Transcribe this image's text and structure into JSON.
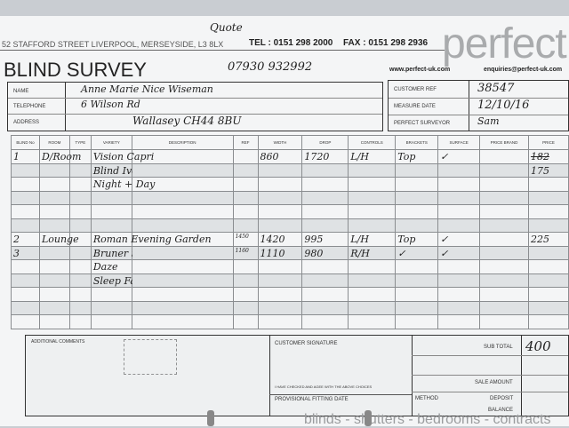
{
  "header": {
    "address": "52 STAFFORD STREET LIVERPOOL, MERSEYSIDE, L3 8LX",
    "tel": "TEL : 0151 298 2000",
    "fax": "FAX : 0151 298 2936",
    "logo": "perfect",
    "title": "BLIND SURVEY",
    "website": "www.perfect-uk.com",
    "email": "enquiries@perfect-uk.com",
    "handwritten_note": "Quote",
    "handwritten_phone": "07930 932992"
  },
  "customer": {
    "name_label": "NAME",
    "name": "Anne Marie Nice Wiseman",
    "telephone_label": "TELEPHONE",
    "telephone": "6 Wilson Rd",
    "address_label": "ADDRESS",
    "address": "Wallasey CH44 8BU"
  },
  "ref": {
    "customer_ref_label": "CUSTOMER REF",
    "customer_ref": "38547",
    "measure_date_label": "MEASURE DATE",
    "measure_date": "12/10/16",
    "surveyor_label": "PERFECT SURVEYOR",
    "surveyor": "Sam"
  },
  "table": {
    "headers": [
      "BLIND No",
      "ROOM",
      "TYPE",
      "VARIETY",
      "DESCRIPTION",
      "REF",
      "WIDTH",
      "DROP",
      "CONTROLS",
      "BRACKETS",
      "SURFACE",
      "PRICE BRAND",
      "PRICE"
    ],
    "rows": [
      [
        "1",
        "D/Room",
        "",
        "Vision Capri",
        "",
        "",
        "860",
        "1720",
        "L/H",
        "Top",
        "✓",
        "",
        "182"
      ],
      [
        "",
        "",
        "",
        "Blind Ivory",
        "",
        "",
        "",
        "",
        "",
        "",
        "",
        "",
        "175"
      ],
      [
        "",
        "",
        "",
        "Night + Day",
        "",
        "",
        "",
        "",
        "",
        "",
        "",
        "",
        ""
      ],
      [
        "",
        "",
        "",
        "",
        "",
        "",
        "",
        "",
        "",
        "",
        "",
        "",
        ""
      ],
      [
        "",
        "",
        "",
        "",
        "",
        "",
        "",
        "",
        "",
        "",
        "",
        "",
        ""
      ],
      [
        "",
        "",
        "",
        "",
        "",
        "",
        "",
        "",
        "",
        "",
        "",
        "",
        ""
      ],
      [
        "2",
        "Lounge",
        "",
        "Roman Evening Garden",
        "",
        "1450",
        "1420",
        "995",
        "L/H",
        "Top",
        "✓",
        "",
        "225"
      ],
      [
        "3",
        "",
        "",
        "Bruner Summer",
        "",
        "1160",
        "1110",
        "980",
        "R/H",
        "✓",
        "✓",
        "",
        ""
      ],
      [
        "",
        "",
        "",
        "Daze",
        "",
        "",
        "",
        "",
        "",
        "",
        "",
        "",
        ""
      ],
      [
        "",
        "",
        "",
        "Sleep Fashion",
        "",
        "",
        "",
        "",
        "",
        "",
        "",
        "",
        ""
      ],
      [
        "",
        "",
        "",
        "",
        "",
        "",
        "",
        "",
        "",
        "",
        "",
        "",
        ""
      ],
      [
        "",
        "",
        "",
        "",
        "",
        "",
        "",
        "",
        "",
        "",
        "",
        "",
        ""
      ],
      [
        "",
        "",
        "",
        "",
        "",
        "",
        "",
        "",
        "",
        "",
        "",
        "",
        ""
      ]
    ]
  },
  "footer": {
    "comments_label": "ADDITIONAL COMMENTS",
    "signature_label": "CUSTOMER SIGNATURE",
    "agree_text": "I HAVE CHECKED AND AGEE WITH THE ABOVE CHOICES",
    "fitting_label": "PROVISIONAL FITTING DATE",
    "subtotal_label": "SUB TOTAL",
    "subtotal": "400",
    "sale_label": "SALE AMOUNT",
    "method_label": "METHOD",
    "deposit_label": "DEPOSIT",
    "balance_label": "BALANCE",
    "tagline": "blinds - shutters - bedrooms - contracts"
  }
}
